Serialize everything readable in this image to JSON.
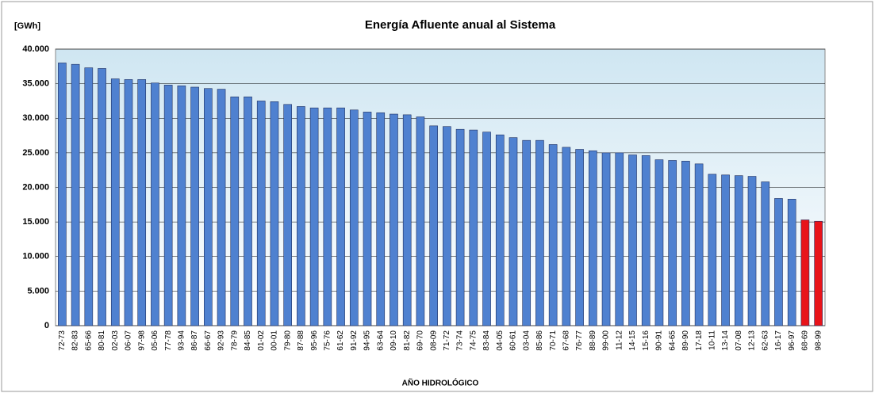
{
  "chart_data": {
    "type": "bar",
    "title": "Energía Afluente anual al Sistema",
    "y_label": "[GWh]",
    "x_label": "AÑO HIDROLÓGICO",
    "categories": [
      "72-73",
      "82-83",
      "65-66",
      "80-81",
      "02-03",
      "06-07",
      "97-98",
      "05-06",
      "77-78",
      "93-94",
      "86-87",
      "66-67",
      "92-93",
      "78-79",
      "84-85",
      "01-02",
      "00-01",
      "79-80",
      "87-88",
      "95-96",
      "75-76",
      "61-62",
      "91-92",
      "94-95",
      "63-64",
      "09-10",
      "81-82",
      "69-70",
      "08-09",
      "71-72",
      "73-74",
      "74-75",
      "83-84",
      "04-05",
      "60-61",
      "03-04",
      "85-86",
      "70-71",
      "67-68",
      "76-77",
      "88-89",
      "99-00",
      "11-12",
      "14-15",
      "15-16",
      "90-91",
      "64-65",
      "89-90",
      "17-18",
      "10-11",
      "13-14",
      "07-08",
      "12-13",
      "62-63",
      "16-17",
      "96-97",
      "68-69",
      "98-99"
    ],
    "values": [
      38000,
      37800,
      37300,
      37200,
      35700,
      35600,
      35600,
      35100,
      34800,
      34700,
      34500,
      34300,
      34200,
      33100,
      33100,
      32500,
      32400,
      32000,
      31700,
      31500,
      31500,
      31500,
      31200,
      30900,
      30800,
      30600,
      30500,
      30200,
      28900,
      28800,
      28400,
      28300,
      28000,
      27600,
      27200,
      26800,
      26800,
      26200,
      25800,
      25500,
      25300,
      25000,
      25000,
      24700,
      24600,
      24000,
      23900,
      23800,
      23400,
      21900,
      21800,
      21700,
      21600,
      20800,
      18400,
      18300,
      15300,
      15100
    ],
    "colors": [
      "#4f81d0",
      "#4f81d0",
      "#4f81d0",
      "#4f81d0",
      "#4f81d0",
      "#4f81d0",
      "#4f81d0",
      "#4f81d0",
      "#4f81d0",
      "#4f81d0",
      "#4f81d0",
      "#4f81d0",
      "#4f81d0",
      "#4f81d0",
      "#4f81d0",
      "#4f81d0",
      "#4f81d0",
      "#4f81d0",
      "#4f81d0",
      "#4f81d0",
      "#4f81d0",
      "#4f81d0",
      "#4f81d0",
      "#4f81d0",
      "#4f81d0",
      "#4f81d0",
      "#4f81d0",
      "#4f81d0",
      "#4f81d0",
      "#4f81d0",
      "#4f81d0",
      "#4f81d0",
      "#4f81d0",
      "#4f81d0",
      "#4f81d0",
      "#4f81d0",
      "#4f81d0",
      "#4f81d0",
      "#4f81d0",
      "#4f81d0",
      "#4f81d0",
      "#4f81d0",
      "#4f81d0",
      "#4f81d0",
      "#4f81d0",
      "#4f81d0",
      "#4f81d0",
      "#4f81d0",
      "#4f81d0",
      "#4f81d0",
      "#4f81d0",
      "#4f81d0",
      "#4f81d0",
      "#4f81d0",
      "#4f81d0",
      "#4f81d0",
      "#e8141a",
      "#e8141a"
    ],
    "ylim": [
      0,
      40000
    ],
    "yticks": [
      0,
      {
        "value": 5000,
        "label": "5.000"
      },
      {
        "value": 10000,
        "label": "10.000"
      },
      {
        "value": 15000,
        "label": "15.000"
      },
      {
        "value": 20000,
        "label": "20.000"
      },
      {
        "value": 25000,
        "label": "25.000"
      },
      {
        "value": 30000,
        "label": "30.000"
      },
      {
        "value": 35000,
        "label": "35.000"
      },
      {
        "value": 40000,
        "label": "40.000"
      }
    ],
    "grid": true
  }
}
